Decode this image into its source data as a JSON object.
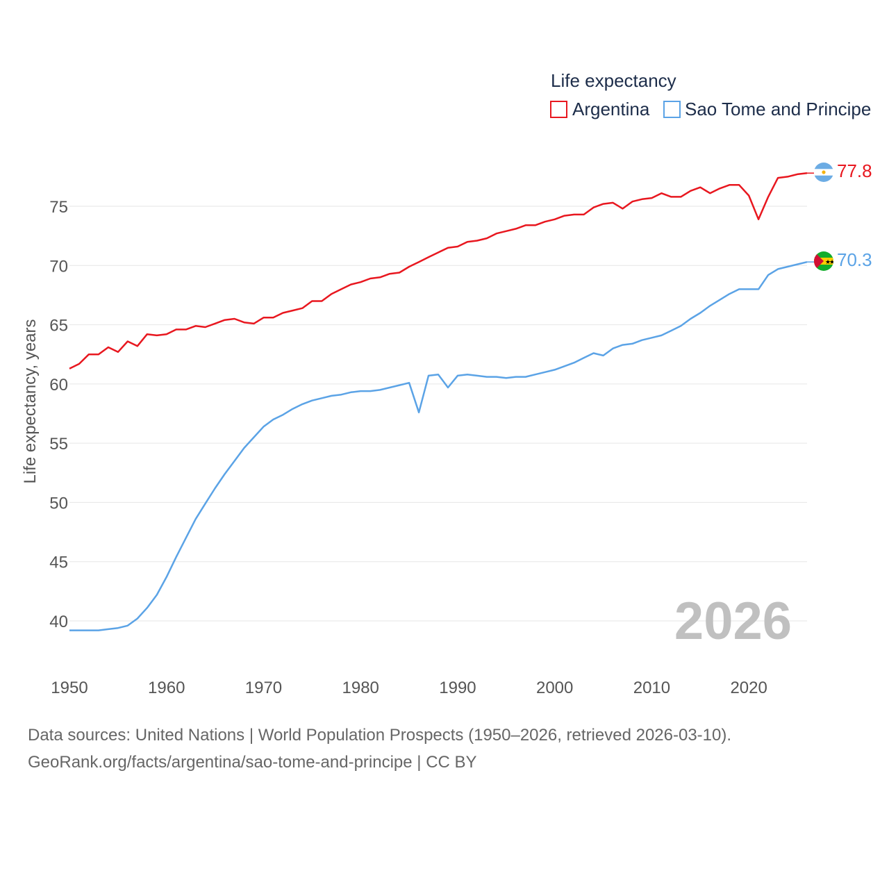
{
  "chart_data": {
    "type": "line",
    "title": "",
    "legend_title": "Life expectancy",
    "ylabel": "Life expectancy, years",
    "xlabel": "",
    "xlim": [
      1950,
      2026
    ],
    "ylim": [
      38,
      79
    ],
    "x_ticks": [
      1950,
      1960,
      1970,
      1980,
      1990,
      2000,
      2010,
      2020
    ],
    "y_ticks": [
      40,
      45,
      50,
      55,
      60,
      65,
      70,
      75
    ],
    "current_year": "2026",
    "x": [
      1950,
      1951,
      1952,
      1953,
      1954,
      1955,
      1956,
      1957,
      1958,
      1959,
      1960,
      1961,
      1962,
      1963,
      1964,
      1965,
      1966,
      1967,
      1968,
      1969,
      1970,
      1971,
      1972,
      1973,
      1974,
      1975,
      1976,
      1977,
      1978,
      1979,
      1980,
      1981,
      1982,
      1983,
      1984,
      1985,
      1986,
      1987,
      1988,
      1989,
      1990,
      1991,
      1992,
      1993,
      1994,
      1995,
      1996,
      1997,
      1998,
      1999,
      2000,
      2001,
      2002,
      2003,
      2004,
      2005,
      2006,
      2007,
      2008,
      2009,
      2010,
      2011,
      2012,
      2013,
      2014,
      2015,
      2016,
      2017,
      2018,
      2019,
      2020,
      2021,
      2022,
      2023,
      2024,
      2025,
      2026
    ],
    "series": [
      {
        "name": "Argentina",
        "color": "#e8171f",
        "end_label": "77.8",
        "values": [
          61.3,
          61.7,
          62.5,
          62.5,
          63.1,
          62.7,
          63.6,
          63.2,
          64.2,
          64.1,
          64.2,
          64.6,
          64.6,
          64.9,
          64.8,
          65.1,
          65.4,
          65.5,
          65.2,
          65.1,
          65.6,
          65.6,
          66.0,
          66.2,
          66.4,
          67.0,
          67.0,
          67.6,
          68.0,
          68.4,
          68.6,
          68.9,
          69.0,
          69.3,
          69.4,
          69.9,
          70.3,
          70.7,
          71.1,
          71.5,
          71.6,
          72.0,
          72.1,
          72.3,
          72.7,
          72.9,
          73.1,
          73.4,
          73.4,
          73.7,
          73.9,
          74.2,
          74.3,
          74.3,
          74.9,
          75.2,
          75.3,
          74.8,
          75.4,
          75.6,
          75.7,
          76.1,
          75.8,
          75.8,
          76.3,
          76.6,
          76.1,
          76.5,
          76.8,
          76.8,
          75.9,
          73.9,
          75.8,
          77.4,
          77.5,
          77.7,
          77.8
        ]
      },
      {
        "name": "Sao Tome and Principe",
        "color": "#5ba3e6",
        "end_label": "70.3",
        "values": [
          39.2,
          39.2,
          39.2,
          39.2,
          39.3,
          39.4,
          39.6,
          40.2,
          41.1,
          42.2,
          43.7,
          45.4,
          47.0,
          48.6,
          49.9,
          51.2,
          52.4,
          53.5,
          54.6,
          55.5,
          56.4,
          57.0,
          57.4,
          57.9,
          58.3,
          58.6,
          58.8,
          59.0,
          59.1,
          59.3,
          59.4,
          59.4,
          59.5,
          59.7,
          59.9,
          60.1,
          57.6,
          60.7,
          60.8,
          59.7,
          60.7,
          60.8,
          60.7,
          60.6,
          60.6,
          60.5,
          60.6,
          60.6,
          60.8,
          61.0,
          61.2,
          61.5,
          61.8,
          62.2,
          62.6,
          62.4,
          63.0,
          63.3,
          63.4,
          63.7,
          63.9,
          64.1,
          64.5,
          64.9,
          65.5,
          66.0,
          66.6,
          67.1,
          67.6,
          68.0,
          68.0,
          68.0,
          69.2,
          69.7,
          69.9,
          70.1,
          70.3
        ]
      }
    ]
  },
  "footer": {
    "line1": "Data sources: United Nations | World Population Prospects (1950–2026, retrieved 2026-03-10).",
    "line2": "GeoRank.org/facts/argentina/sao-tome-and-principe | CC BY"
  }
}
